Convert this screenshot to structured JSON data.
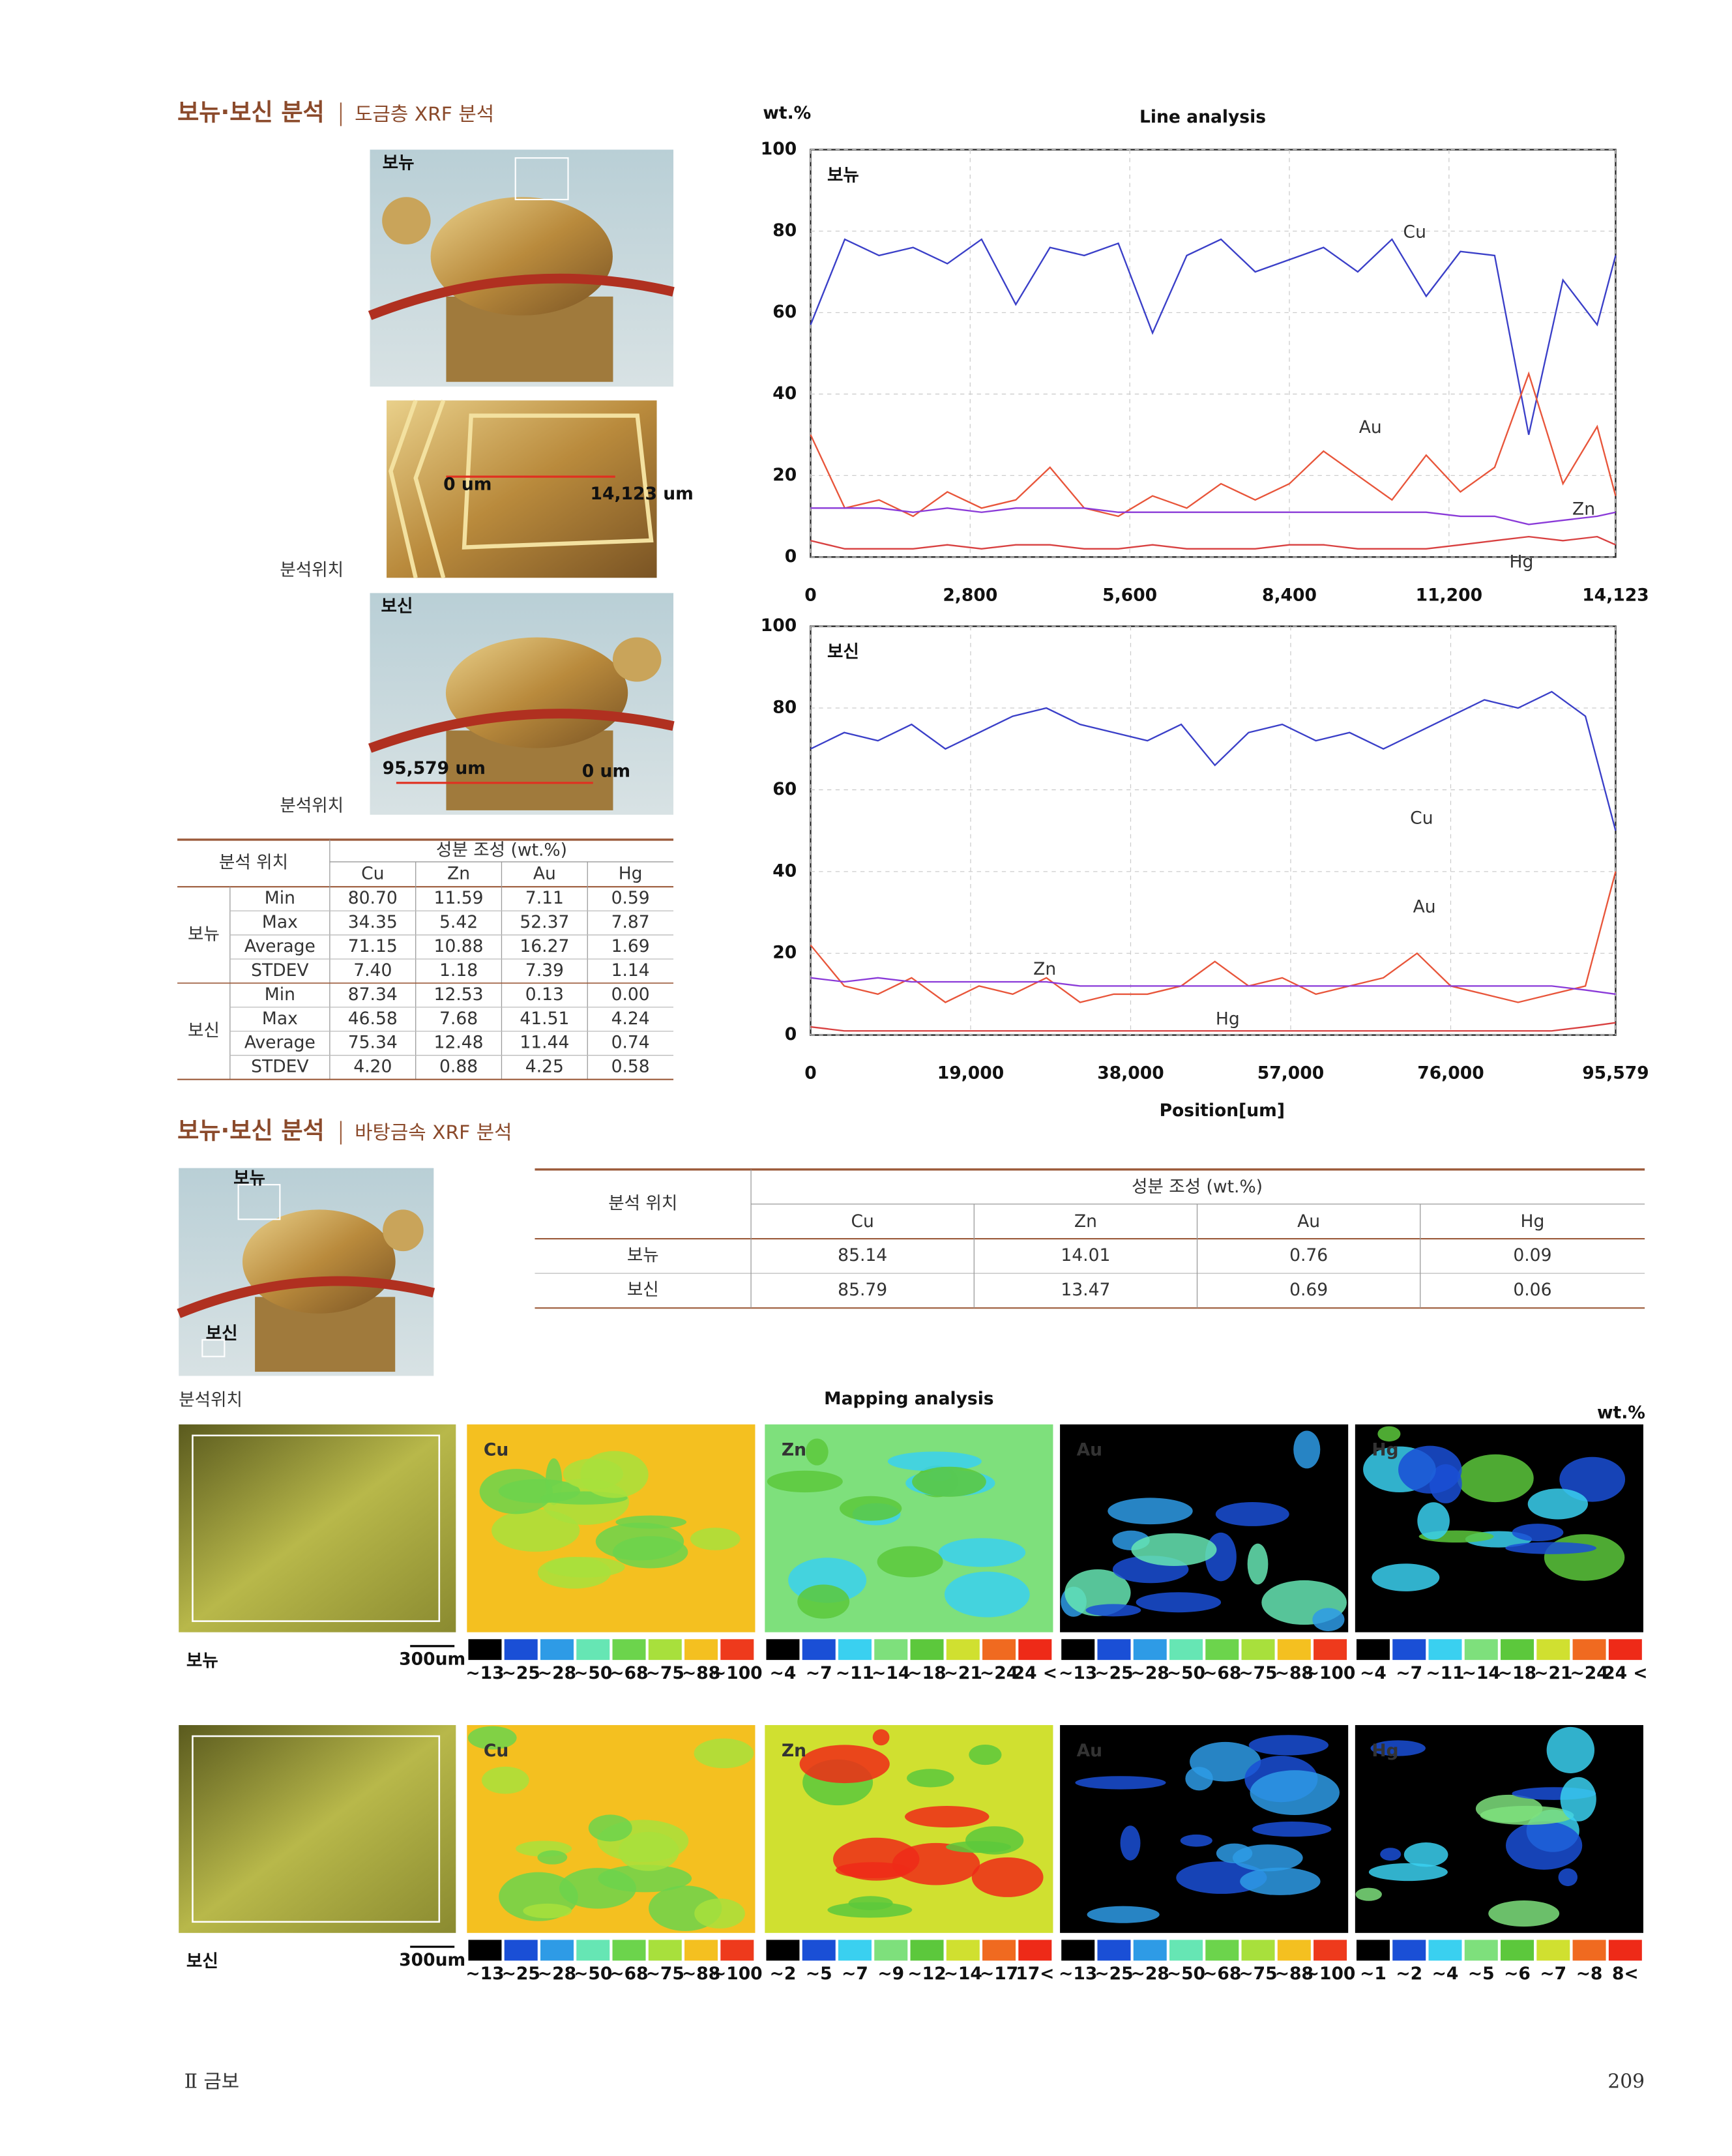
{
  "section1": {
    "title": "보뉴·보신 분석",
    "subtitle": "도금층 XRF 분석"
  },
  "photos": {
    "bonyu_label": "보뉴",
    "start1": "0 um",
    "end1": "14,123 um",
    "position1": "분석위치",
    "bosin_label": "보신",
    "end2": "95,579 um",
    "start2": "0 um",
    "position2": "분석위치"
  },
  "table1": {
    "header": {
      "position": "분석 위치",
      "composition": "성분 조성 (wt.%)",
      "columns": [
        "Cu",
        "Zn",
        "Au",
        "Hg"
      ]
    },
    "groups": [
      {
        "name": "보뉴",
        "rows": [
          [
            "Min",
            "80.70",
            "11.59",
            "7.11",
            "0.59"
          ],
          [
            "Max",
            "34.35",
            "5.42",
            "52.37",
            "7.87"
          ],
          [
            "Average",
            "71.15",
            "10.88",
            "16.27",
            "1.69"
          ],
          [
            "STDEV",
            "7.40",
            "1.18",
            "7.39",
            "1.14"
          ]
        ]
      },
      {
        "name": "보신",
        "rows": [
          [
            "Min",
            "87.34",
            "12.53",
            "0.13",
            "0.00"
          ],
          [
            "Max",
            "46.58",
            "7.68",
            "41.51",
            "4.24"
          ],
          [
            "Average",
            "75.34",
            "12.48",
            "11.44",
            "0.74"
          ],
          [
            "STDEV",
            "4.20",
            "0.88",
            "4.25",
            "0.58"
          ]
        ]
      }
    ]
  },
  "chart_data": [
    {
      "type": "line",
      "title": "Line analysis",
      "ylabel": "wt.%",
      "panel": "보뉴",
      "grid": true,
      "x": [
        0,
        600,
        1200,
        1800,
        2400,
        3000,
        3600,
        4200,
        4800,
        5400,
        6000,
        6600,
        7200,
        7800,
        8400,
        9000,
        9600,
        10200,
        10800,
        11400,
        12000,
        12600,
        13200,
        13800,
        14123
      ],
      "xlim": [
        0,
        14123
      ],
      "xticks": [
        0,
        {
          "value": 2800,
          "label": "2,800"
        },
        {
          "value": 5600,
          "label": "5,600"
        },
        {
          "value": 8400,
          "label": "8,400"
        },
        {
          "value": 11200,
          "label": "11,200"
        },
        {
          "value": 14123,
          "label": "14,123"
        }
      ],
      "ylim": [
        0,
        100
      ],
      "yticks": [
        0,
        20,
        40,
        60,
        80,
        100
      ],
      "series": [
        {
          "name": "Cu",
          "color": "#3a3fc8",
          "values": [
            57,
            78,
            74,
            76,
            72,
            78,
            62,
            76,
            74,
            77,
            55,
            74,
            78,
            70,
            73,
            76,
            70,
            78,
            64,
            75,
            74,
            30,
            68,
            57,
            74
          ]
        },
        {
          "name": "Au",
          "color": "#e8553a",
          "values": [
            30,
            12,
            14,
            10,
            16,
            12,
            14,
            22,
            12,
            10,
            15,
            12,
            18,
            14,
            18,
            26,
            20,
            14,
            25,
            16,
            22,
            45,
            18,
            32,
            15
          ]
        },
        {
          "name": "Zn",
          "color": "#8a3ad8",
          "values": [
            12,
            12,
            12,
            11,
            12,
            11,
            12,
            12,
            12,
            11,
            11,
            11,
            11,
            11,
            11,
            11,
            11,
            11,
            11,
            10,
            10,
            8,
            9,
            10,
            11
          ]
        },
        {
          "name": "Hg",
          "color": "#d84040",
          "values": [
            4,
            2,
            2,
            2,
            3,
            2,
            3,
            3,
            2,
            2,
            3,
            2,
            2,
            2,
            3,
            3,
            2,
            2,
            2,
            3,
            4,
            5,
            4,
            5,
            3
          ]
        }
      ]
    },
    {
      "type": "line",
      "panel": "보신",
      "xlabel": "Position[um]",
      "grid": true,
      "x": [
        0,
        4000,
        8000,
        12000,
        16000,
        20000,
        24000,
        28000,
        32000,
        36000,
        40000,
        44000,
        48000,
        52000,
        56000,
        60000,
        64000,
        68000,
        72000,
        76000,
        80000,
        84000,
        88000,
        92000,
        95579
      ],
      "xlim": [
        0,
        95579
      ],
      "xticks": [
        0,
        {
          "value": 19000,
          "label": "19,000"
        },
        {
          "value": 38000,
          "label": "38,000"
        },
        {
          "value": 57000,
          "label": "57,000"
        },
        {
          "value": 76000,
          "label": "76,000"
        },
        {
          "value": 95579,
          "label": "95,579"
        }
      ],
      "ylim": [
        0,
        100
      ],
      "yticks": [
        0,
        20,
        40,
        60,
        80,
        100
      ],
      "series": [
        {
          "name": "Cu",
          "color": "#3a3fc8",
          "values": [
            70,
            74,
            72,
            76,
            70,
            74,
            78,
            80,
            76,
            74,
            72,
            76,
            66,
            74,
            76,
            72,
            74,
            70,
            74,
            78,
            82,
            80,
            84,
            78,
            50
          ]
        },
        {
          "name": "Au",
          "color": "#e8553a",
          "values": [
            22,
            12,
            10,
            14,
            8,
            12,
            10,
            14,
            8,
            10,
            10,
            12,
            18,
            12,
            14,
            10,
            12,
            14,
            20,
            12,
            10,
            8,
            10,
            12,
            40
          ]
        },
        {
          "name": "Zn",
          "color": "#8a3ad8",
          "values": [
            14,
            13,
            14,
            13,
            13,
            13,
            13,
            13,
            12,
            12,
            12,
            12,
            12,
            12,
            12,
            12,
            12,
            12,
            12,
            12,
            12,
            12,
            12,
            11,
            10
          ]
        },
        {
          "name": "Hg",
          "color": "#d84040",
          "values": [
            2,
            1,
            1,
            1,
            1,
            1,
            1,
            1,
            1,
            1,
            1,
            1,
            1,
            1,
            1,
            1,
            1,
            1,
            1,
            1,
            1,
            1,
            1,
            2,
            3
          ]
        }
      ]
    }
  ],
  "section2": {
    "title": "보뉴·보신 분석",
    "subtitle": "바탕금속 XRF 분석"
  },
  "photo2": {
    "bonyu_label": "보뉴",
    "bosin_label": "보신",
    "position": "분석위치"
  },
  "table2": {
    "header": {
      "position": "분석 위치",
      "composition": "성분 조성 (wt.%)",
      "columns": [
        "Cu",
        "Zn",
        "Au",
        "Hg"
      ]
    },
    "rows": [
      [
        "보뉴",
        "85.14",
        "14.01",
        "0.76",
        "0.09"
      ],
      [
        "보신",
        "85.79",
        "13.47",
        "0.69",
        "0.06"
      ]
    ]
  },
  "mapping": {
    "title": "Mapping analysis",
    "unit": "wt.%",
    "rows": [
      {
        "label": "보뉴",
        "scale": "300um",
        "maps": [
          {
            "element": "Cu",
            "colors": [
              "#000000",
              "#1a4fd6",
              "#2e9be6",
              "#66e6b4",
              "#6cd44c",
              "#a8e03c",
              "#f4c020",
              "#ee3a1c"
            ],
            "labels": [
              "~13",
              "~25",
              "~28",
              "~50",
              "~68",
              "~75",
              "~88",
              "~100"
            ]
          },
          {
            "element": "Zn",
            "colors": [
              "#000000",
              "#1a4fd6",
              "#3ad0f0",
              "#7ee07c",
              "#5cc83c",
              "#d0e030",
              "#f06a20",
              "#ee2a18"
            ],
            "labels": [
              "~4",
              "~7",
              "~11",
              "~14",
              "~18",
              "~21",
              "~24",
              "24 <"
            ]
          },
          {
            "element": "Au",
            "colors": [
              "#000000",
              "#1a4fd6",
              "#2e9be6",
              "#66e6b4",
              "#6cd44c",
              "#a8e03c",
              "#f4c020",
              "#ee3a1c"
            ],
            "labels": [
              "~13",
              "~25",
              "~28",
              "~50",
              "~68",
              "~75",
              "~88",
              "~100"
            ]
          },
          {
            "element": "Hg",
            "colors": [
              "#000000",
              "#1a4fd6",
              "#3ad0f0",
              "#7ee07c",
              "#5cc83c",
              "#d0e030",
              "#f06a20",
              "#ee2a18"
            ],
            "labels": [
              "~4",
              "~7",
              "~11",
              "~14",
              "~18",
              "~21",
              "~24",
              "24 <"
            ]
          }
        ]
      },
      {
        "label": "보신",
        "scale": "300um",
        "maps": [
          {
            "element": "Cu",
            "colors": [
              "#000000",
              "#1a4fd6",
              "#2e9be6",
              "#66e6b4",
              "#6cd44c",
              "#a8e03c",
              "#f4c020",
              "#ee3a1c"
            ],
            "labels": [
              "~13",
              "~25",
              "~28",
              "~50",
              "~68",
              "~75",
              "~88",
              "~100"
            ]
          },
          {
            "element": "Zn",
            "colors": [
              "#000000",
              "#1a4fd6",
              "#3ad0f0",
              "#7ee07c",
              "#5cc83c",
              "#d0e030",
              "#f06a20",
              "#ee2a18"
            ],
            "labels": [
              "~2",
              "~5",
              "~7",
              "~9",
              "~12",
              "~14",
              "~17",
              "17<"
            ]
          },
          {
            "element": "Au",
            "colors": [
              "#000000",
              "#1a4fd6",
              "#2e9be6",
              "#66e6b4",
              "#6cd44c",
              "#a8e03c",
              "#f4c020",
              "#ee3a1c"
            ],
            "labels": [
              "~13",
              "~25",
              "~28",
              "~50",
              "~68",
              "~75",
              "~88",
              "~100"
            ]
          },
          {
            "element": "Hg",
            "colors": [
              "#000000",
              "#1a4fd6",
              "#3ad0f0",
              "#7ee07c",
              "#5cc83c",
              "#d0e030",
              "#f06a20",
              "#ee2a18"
            ],
            "labels": [
              "~1",
              "~2",
              "~4",
              "~5",
              "~6",
              "~7",
              "~8",
              "8<"
            ]
          }
        ]
      }
    ]
  },
  "footer": {
    "section": "Ⅱ 금보",
    "page": "209"
  }
}
